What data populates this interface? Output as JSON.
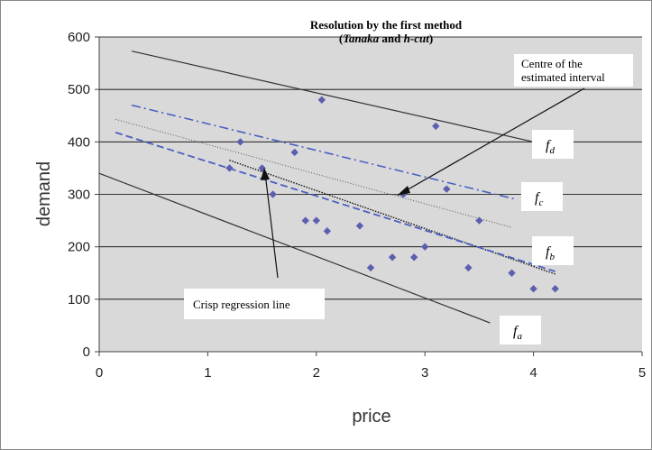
{
  "chart_data": {
    "type": "scatter",
    "title": "Resolution by the first method",
    "subtitle_italic": "Tanaka",
    "subtitle_mid": " and ",
    "subtitle_italic2": "h-cut",
    "xlabel": "price",
    "ylabel": "demand",
    "xlim": [
      0,
      5
    ],
    "ylim": [
      0,
      600
    ],
    "xticks": [
      0,
      1,
      2,
      3,
      4,
      5
    ],
    "yticks": [
      0,
      100,
      200,
      300,
      400,
      500,
      600
    ],
    "grid": true,
    "colors": {
      "plot_bg": "#d9d9d9",
      "points": "#5b5fae",
      "blue_line": "#4a5fc1",
      "black_line": "#333333",
      "grid": "#000000"
    },
    "points": [
      {
        "x": 1.2,
        "y": 350
      },
      {
        "x": 1.3,
        "y": 400
      },
      {
        "x": 1.5,
        "y": 350
      },
      {
        "x": 1.6,
        "y": 300
      },
      {
        "x": 1.8,
        "y": 380
      },
      {
        "x": 1.9,
        "y": 250
      },
      {
        "x": 2.0,
        "y": 250
      },
      {
        "x": 2.05,
        "y": 480
      },
      {
        "x": 2.1,
        "y": 230
      },
      {
        "x": 2.4,
        "y": 240
      },
      {
        "x": 2.5,
        "y": 160
      },
      {
        "x": 2.7,
        "y": 180
      },
      {
        "x": 2.8,
        "y": 300
      },
      {
        "x": 2.9,
        "y": 180
      },
      {
        "x": 3.0,
        "y": 200
      },
      {
        "x": 3.1,
        "y": 430
      },
      {
        "x": 3.2,
        "y": 310
      },
      {
        "x": 3.4,
        "y": 160
      },
      {
        "x": 3.5,
        "y": 250
      },
      {
        "x": 3.8,
        "y": 150
      },
      {
        "x": 4.0,
        "y": 120
      },
      {
        "x": 4.2,
        "y": 120
      }
    ],
    "lines": [
      {
        "name": "f_d",
        "style": "solid-black",
        "x": [
          0.3,
          4.0
        ],
        "y": [
          573,
          400
        ]
      },
      {
        "name": "f_c",
        "style": "dashdot-blue",
        "x": [
          0.3,
          3.85
        ],
        "y": [
          470,
          290
        ]
      },
      {
        "name": "centre",
        "style": "dotted-gray",
        "x": [
          0.15,
          3.8
        ],
        "y": [
          443,
          237
        ]
      },
      {
        "name": "crisp",
        "style": "dotted-black",
        "x": [
          1.2,
          4.2
        ],
        "y": [
          365,
          148
        ]
      },
      {
        "name": "f_b",
        "style": "dashed-blue",
        "x": [
          0.15,
          4.2
        ],
        "y": [
          418,
          153
        ]
      },
      {
        "name": "f_a",
        "style": "solid-black",
        "x": [
          0.0,
          3.6
        ],
        "y": [
          340,
          55
        ]
      }
    ],
    "annotations": {
      "centre_label": [
        "Centre of the",
        "estimated interval"
      ],
      "crisp_label": "Crisp regression line",
      "f_labels": [
        {
          "main": "f",
          "sub": "d"
        },
        {
          "main": "f",
          "sub": "c"
        },
        {
          "main": "f",
          "sub": "b"
        },
        {
          "main": "f",
          "sub": "a"
        }
      ]
    }
  }
}
